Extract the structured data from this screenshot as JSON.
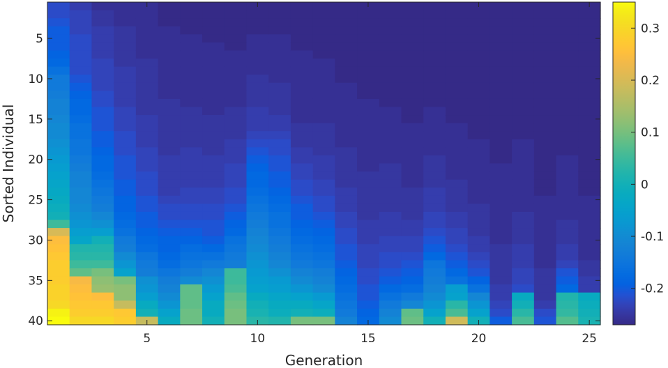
{
  "chart_data": {
    "type": "heatmap",
    "title": "",
    "xlabel": "Generation",
    "ylabel": "Sorted Individual",
    "xlim": [
      0.5,
      25.5
    ],
    "ylim": [
      0.5,
      40.5
    ],
    "y_reversed": true,
    "x_ticks": [
      5,
      10,
      15,
      20,
      25
    ],
    "x_tick_labels": [
      "5",
      "10",
      "15",
      "20",
      "25"
    ],
    "y_ticks": [
      5,
      10,
      15,
      20,
      25,
      30,
      35,
      40
    ],
    "y_tick_labels": [
      "5",
      "10",
      "15",
      "20",
      "25",
      "30",
      "35",
      "40"
    ],
    "colormap": "parula",
    "clim": [
      -0.27,
      0.35
    ],
    "colorbar": {
      "ticks": [
        -0.2,
        -0.1,
        0,
        0.1,
        0.2,
        0.3
      ],
      "tick_labels": [
        "-0.2",
        "-0.1",
        "0",
        "0.1",
        "0.2",
        "0.3"
      ]
    },
    "note_generation": "values[i] = column for generation i+1, listing individuals 1..40",
    "values": [
      [
        -0.22,
        -0.22,
        -0.21,
        -0.2,
        -0.2,
        -0.2,
        -0.19,
        -0.18,
        -0.16,
        -0.14,
        -0.14,
        -0.13,
        -0.12,
        -0.12,
        -0.11,
        -0.1,
        -0.1,
        -0.09,
        -0.08,
        -0.07,
        -0.06,
        -0.05,
        -0.04,
        -0.03,
        -0.02,
        -0.01,
        0.0,
        0.05,
        0.2,
        0.25,
        0.26,
        0.27,
        0.28,
        0.28,
        0.28,
        0.29,
        0.29,
        0.3,
        0.34,
        0.35
      ],
      [
        -0.24,
        -0.23,
        -0.23,
        -0.23,
        -0.22,
        -0.22,
        -0.22,
        -0.22,
        -0.22,
        -0.21,
        -0.2,
        -0.19,
        -0.18,
        -0.18,
        -0.17,
        -0.16,
        -0.16,
        -0.15,
        -0.15,
        -0.14,
        -0.13,
        -0.12,
        -0.12,
        -0.11,
        -0.11,
        -0.1,
        -0.09,
        -0.08,
        -0.06,
        -0.04,
        0.02,
        0.03,
        0.05,
        0.08,
        0.24,
        0.25,
        0.26,
        0.27,
        0.28,
        0.3
      ],
      [
        -0.26,
        -0.25,
        -0.25,
        -0.24,
        -0.24,
        -0.24,
        -0.24,
        -0.23,
        -0.23,
        -0.23,
        -0.23,
        -0.22,
        -0.22,
        -0.21,
        -0.21,
        -0.21,
        -0.2,
        -0.2,
        -0.19,
        -0.18,
        -0.18,
        -0.17,
        -0.16,
        -0.15,
        -0.14,
        -0.13,
        -0.11,
        -0.09,
        -0.06,
        0.0,
        0.02,
        0.03,
        0.05,
        0.1,
        0.12,
        0.13,
        0.25,
        0.27,
        0.28,
        0.3
      ],
      [
        -0.26,
        -0.26,
        -0.26,
        -0.25,
        -0.25,
        -0.25,
        -0.25,
        -0.25,
        -0.24,
        -0.24,
        -0.24,
        -0.24,
        -0.24,
        -0.23,
        -0.23,
        -0.23,
        -0.22,
        -0.22,
        -0.22,
        -0.21,
        -0.21,
        -0.21,
        -0.2,
        -0.2,
        -0.19,
        -0.19,
        -0.18,
        -0.17,
        -0.16,
        -0.14,
        -0.13,
        -0.1,
        -0.08,
        -0.05,
        0.1,
        0.12,
        0.12,
        0.18,
        0.27,
        0.28
      ],
      [
        -0.26,
        -0.26,
        -0.26,
        -0.26,
        -0.26,
        -0.26,
        -0.26,
        -0.25,
        -0.25,
        -0.25,
        -0.25,
        -0.25,
        -0.25,
        -0.25,
        -0.24,
        -0.24,
        -0.24,
        -0.24,
        -0.23,
        -0.23,
        -0.23,
        -0.22,
        -0.22,
        -0.22,
        -0.21,
        -0.21,
        -0.2,
        -0.2,
        -0.19,
        -0.18,
        -0.17,
        -0.15,
        -0.14,
        -0.13,
        -0.09,
        -0.08,
        -0.06,
        -0.02,
        0.0,
        0.18
      ],
      [
        -0.27,
        -0.27,
        -0.27,
        -0.26,
        -0.26,
        -0.26,
        -0.26,
        -0.26,
        -0.26,
        -0.26,
        -0.26,
        -0.26,
        -0.25,
        -0.25,
        -0.25,
        -0.25,
        -0.25,
        -0.25,
        -0.25,
        -0.24,
        -0.24,
        -0.24,
        -0.24,
        -0.24,
        -0.23,
        -0.22,
        -0.22,
        -0.21,
        -0.2,
        -0.19,
        -0.19,
        -0.18,
        -0.17,
        -0.15,
        -0.13,
        -0.12,
        -0.1,
        -0.08,
        -0.05,
        -0.02
      ],
      [
        -0.27,
        -0.27,
        -0.27,
        -0.27,
        -0.26,
        -0.26,
        -0.26,
        -0.26,
        -0.26,
        -0.26,
        -0.26,
        -0.26,
        -0.26,
        -0.25,
        -0.25,
        -0.25,
        -0.25,
        -0.25,
        -0.24,
        -0.24,
        -0.24,
        -0.24,
        -0.24,
        -0.23,
        -0.23,
        -0.22,
        -0.22,
        -0.21,
        -0.2,
        -0.19,
        -0.17,
        -0.16,
        -0.15,
        -0.13,
        -0.1,
        0.08,
        0.08,
        0.08,
        0.09,
        0.09
      ],
      [
        -0.27,
        -0.27,
        -0.27,
        -0.27,
        -0.27,
        -0.26,
        -0.26,
        -0.26,
        -0.26,
        -0.26,
        -0.26,
        -0.26,
        -0.26,
        -0.26,
        -0.25,
        -0.25,
        -0.25,
        -0.25,
        -0.25,
        -0.24,
        -0.24,
        -0.24,
        -0.24,
        -0.23,
        -0.23,
        -0.22,
        -0.22,
        -0.21,
        -0.21,
        -0.2,
        -0.18,
        -0.16,
        -0.14,
        -0.11,
        -0.09,
        -0.07,
        -0.05,
        -0.02,
        -0.02,
        0.0
      ],
      [
        -0.27,
        -0.27,
        -0.27,
        -0.27,
        -0.27,
        -0.27,
        -0.26,
        -0.26,
        -0.26,
        -0.26,
        -0.26,
        -0.26,
        -0.26,
        -0.25,
        -0.25,
        -0.25,
        -0.25,
        -0.24,
        -0.24,
        -0.24,
        -0.23,
        -0.23,
        -0.23,
        -0.22,
        -0.22,
        -0.21,
        -0.2,
        -0.19,
        -0.18,
        -0.16,
        -0.15,
        -0.14,
        -0.13,
        0.05,
        0.05,
        0.06,
        0.08,
        0.09,
        0.1,
        0.1
      ],
      [
        -0.27,
        -0.27,
        -0.27,
        -0.27,
        -0.26,
        -0.26,
        -0.26,
        -0.26,
        -0.26,
        -0.25,
        -0.25,
        -0.25,
        -0.25,
        -0.24,
        -0.24,
        -0.24,
        -0.23,
        -0.22,
        -0.21,
        -0.2,
        -0.19,
        -0.18,
        -0.18,
        -0.17,
        -0.16,
        -0.15,
        -0.14,
        -0.13,
        -0.12,
        -0.11,
        -0.1,
        -0.09,
        -0.08,
        -0.07,
        -0.06,
        -0.05,
        -0.02,
        0.0,
        0.01,
        0.03
      ],
      [
        -0.27,
        -0.27,
        -0.27,
        -0.27,
        -0.26,
        -0.26,
        -0.26,
        -0.26,
        -0.26,
        -0.26,
        -0.25,
        -0.25,
        -0.25,
        -0.25,
        -0.24,
        -0.24,
        -0.23,
        -0.22,
        -0.22,
        -0.21,
        -0.21,
        -0.2,
        -0.2,
        -0.19,
        -0.18,
        -0.17,
        -0.16,
        -0.16,
        -0.15,
        -0.14,
        -0.13,
        -0.12,
        -0.11,
        -0.09,
        -0.07,
        -0.06,
        -0.04,
        -0.02,
        -0.01,
        0.02
      ],
      [
        -0.27,
        -0.27,
        -0.27,
        -0.27,
        -0.27,
        -0.27,
        -0.26,
        -0.26,
        -0.26,
        -0.26,
        -0.26,
        -0.26,
        -0.26,
        -0.26,
        -0.26,
        -0.25,
        -0.25,
        -0.25,
        -0.24,
        -0.24,
        -0.23,
        -0.23,
        -0.22,
        -0.22,
        -0.21,
        -0.2,
        -0.2,
        -0.19,
        -0.18,
        -0.17,
        -0.16,
        -0.15,
        -0.14,
        -0.12,
        -0.1,
        -0.08,
        -0.05,
        -0.02,
        0.0,
        0.1
      ],
      [
        -0.27,
        -0.27,
        -0.27,
        -0.27,
        -0.27,
        -0.27,
        -0.27,
        -0.26,
        -0.26,
        -0.26,
        -0.26,
        -0.26,
        -0.26,
        -0.26,
        -0.26,
        -0.25,
        -0.25,
        -0.25,
        -0.25,
        -0.24,
        -0.24,
        -0.24,
        -0.23,
        -0.23,
        -0.22,
        -0.22,
        -0.21,
        -0.2,
        -0.19,
        -0.18,
        -0.17,
        -0.16,
        -0.15,
        -0.13,
        -0.12,
        -0.1,
        -0.07,
        -0.04,
        -0.01,
        0.1
      ],
      [
        -0.27,
        -0.27,
        -0.27,
        -0.27,
        -0.27,
        -0.27,
        -0.27,
        -0.27,
        -0.27,
        -0.27,
        -0.26,
        -0.26,
        -0.26,
        -0.26,
        -0.26,
        -0.26,
        -0.26,
        -0.26,
        -0.25,
        -0.25,
        -0.25,
        -0.25,
        -0.25,
        -0.24,
        -0.24,
        -0.24,
        -0.23,
        -0.23,
        -0.22,
        -0.22,
        -0.21,
        -0.21,
        -0.2,
        -0.19,
        -0.18,
        -0.17,
        -0.16,
        -0.15,
        -0.14,
        -0.12
      ],
      [
        -0.27,
        -0.27,
        -0.27,
        -0.27,
        -0.27,
        -0.27,
        -0.27,
        -0.27,
        -0.27,
        -0.27,
        -0.27,
        -0.27,
        -0.26,
        -0.26,
        -0.26,
        -0.26,
        -0.26,
        -0.26,
        -0.26,
        -0.26,
        -0.26,
        -0.25,
        -0.25,
        -0.25,
        -0.25,
        -0.25,
        -0.25,
        -0.24,
        -0.24,
        -0.24,
        -0.23,
        -0.23,
        -0.23,
        -0.22,
        -0.22,
        -0.21,
        -0.21,
        -0.2,
        -0.19,
        -0.18
      ],
      [
        -0.27,
        -0.27,
        -0.27,
        -0.27,
        -0.27,
        -0.27,
        -0.27,
        -0.27,
        -0.27,
        -0.27,
        -0.27,
        -0.27,
        -0.27,
        -0.26,
        -0.26,
        -0.26,
        -0.26,
        -0.26,
        -0.26,
        -0.26,
        -0.25,
        -0.25,
        -0.25,
        -0.25,
        -0.25,
        -0.25,
        -0.24,
        -0.24,
        -0.24,
        -0.23,
        -0.23,
        -0.22,
        -0.22,
        -0.21,
        -0.2,
        -0.18,
        -0.16,
        -0.14,
        -0.12,
        -0.1
      ],
      [
        -0.27,
        -0.27,
        -0.27,
        -0.27,
        -0.27,
        -0.27,
        -0.27,
        -0.27,
        -0.27,
        -0.27,
        -0.27,
        -0.27,
        -0.27,
        -0.27,
        -0.27,
        -0.26,
        -0.26,
        -0.26,
        -0.26,
        -0.26,
        -0.26,
        -0.26,
        -0.26,
        -0.25,
        -0.25,
        -0.25,
        -0.25,
        -0.24,
        -0.24,
        -0.23,
        -0.23,
        -0.22,
        -0.21,
        -0.2,
        -0.19,
        -0.17,
        -0.14,
        -0.11,
        0.08,
        0.09
      ],
      [
        -0.27,
        -0.27,
        -0.27,
        -0.27,
        -0.27,
        -0.27,
        -0.27,
        -0.27,
        -0.27,
        -0.27,
        -0.27,
        -0.27,
        -0.27,
        -0.26,
        -0.26,
        -0.26,
        -0.26,
        -0.26,
        -0.26,
        -0.25,
        -0.25,
        -0.25,
        -0.25,
        -0.24,
        -0.24,
        -0.24,
        -0.23,
        -0.23,
        -0.22,
        -0.21,
        -0.2,
        -0.18,
        -0.15,
        -0.14,
        -0.13,
        -0.12,
        -0.1,
        -0.08,
        -0.05,
        0.0
      ],
      [
        -0.27,
        -0.27,
        -0.27,
        -0.27,
        -0.27,
        -0.27,
        -0.27,
        -0.27,
        -0.27,
        -0.27,
        -0.27,
        -0.27,
        -0.27,
        -0.27,
        -0.27,
        -0.26,
        -0.26,
        -0.26,
        -0.26,
        -0.26,
        -0.26,
        -0.26,
        -0.25,
        -0.25,
        -0.25,
        -0.25,
        -0.24,
        -0.24,
        -0.23,
        -0.23,
        -0.22,
        -0.21,
        -0.2,
        -0.18,
        -0.16,
        -0.06,
        -0.05,
        0.03,
        0.06,
        0.19
      ],
      [
        -0.27,
        -0.27,
        -0.27,
        -0.27,
        -0.27,
        -0.27,
        -0.27,
        -0.27,
        -0.27,
        -0.27,
        -0.27,
        -0.27,
        -0.27,
        -0.27,
        -0.27,
        -0.27,
        -0.27,
        -0.26,
        -0.26,
        -0.26,
        -0.26,
        -0.26,
        -0.26,
        -0.26,
        -0.26,
        -0.25,
        -0.25,
        -0.25,
        -0.25,
        -0.24,
        -0.24,
        -0.23,
        -0.22,
        -0.21,
        -0.19,
        -0.16,
        -0.11,
        -0.08,
        -0.05,
        0.0
      ],
      [
        -0.27,
        -0.27,
        -0.27,
        -0.27,
        -0.27,
        -0.27,
        -0.27,
        -0.27,
        -0.27,
        -0.27,
        -0.27,
        -0.27,
        -0.27,
        -0.27,
        -0.27,
        -0.27,
        -0.27,
        -0.27,
        -0.27,
        -0.27,
        -0.26,
        -0.26,
        -0.26,
        -0.26,
        -0.26,
        -0.26,
        -0.26,
        -0.26,
        -0.26,
        -0.26,
        -0.25,
        -0.25,
        -0.25,
        -0.25,
        -0.25,
        -0.24,
        -0.24,
        -0.23,
        -0.22,
        -0.2
      ],
      [
        -0.27,
        -0.27,
        -0.27,
        -0.27,
        -0.27,
        -0.27,
        -0.27,
        -0.27,
        -0.27,
        -0.27,
        -0.27,
        -0.27,
        -0.27,
        -0.27,
        -0.27,
        -0.27,
        -0.27,
        -0.26,
        -0.26,
        -0.26,
        -0.26,
        -0.26,
        -0.26,
        -0.26,
        -0.26,
        -0.26,
        -0.25,
        -0.25,
        -0.25,
        -0.25,
        -0.24,
        -0.24,
        -0.24,
        -0.23,
        -0.23,
        -0.22,
        -0.02,
        0.0,
        0.03,
        0.06
      ],
      [
        -0.27,
        -0.27,
        -0.27,
        -0.27,
        -0.27,
        -0.27,
        -0.27,
        -0.27,
        -0.27,
        -0.27,
        -0.27,
        -0.27,
        -0.27,
        -0.27,
        -0.27,
        -0.27,
        -0.27,
        -0.27,
        -0.27,
        -0.27,
        -0.27,
        -0.27,
        -0.27,
        -0.27,
        -0.26,
        -0.26,
        -0.26,
        -0.26,
        -0.26,
        -0.26,
        -0.26,
        -0.26,
        -0.26,
        -0.25,
        -0.25,
        -0.25,
        -0.25,
        -0.24,
        -0.22,
        -0.21
      ],
      [
        -0.27,
        -0.27,
        -0.27,
        -0.27,
        -0.27,
        -0.27,
        -0.27,
        -0.27,
        -0.27,
        -0.27,
        -0.27,
        -0.27,
        -0.27,
        -0.27,
        -0.27,
        -0.27,
        -0.27,
        -0.27,
        -0.27,
        -0.26,
        -0.26,
        -0.26,
        -0.26,
        -0.26,
        -0.26,
        -0.26,
        -0.26,
        -0.25,
        -0.25,
        -0.25,
        -0.24,
        -0.24,
        -0.23,
        -0.21,
        -0.2,
        -0.18,
        0.02,
        0.03,
        0.04,
        0.07
      ],
      [
        -0.27,
        -0.27,
        -0.27,
        -0.27,
        -0.27,
        -0.27,
        -0.27,
        -0.27,
        -0.27,
        -0.27,
        -0.27,
        -0.27,
        -0.27,
        -0.27,
        -0.27,
        -0.27,
        -0.27,
        -0.27,
        -0.27,
        -0.27,
        -0.27,
        -0.27,
        -0.27,
        -0.27,
        -0.26,
        -0.26,
        -0.26,
        -0.26,
        -0.26,
        -0.26,
        -0.26,
        -0.26,
        -0.25,
        -0.25,
        -0.24,
        -0.24,
        -0.02,
        -0.01,
        0.0,
        0.01
      ]
    ]
  }
}
